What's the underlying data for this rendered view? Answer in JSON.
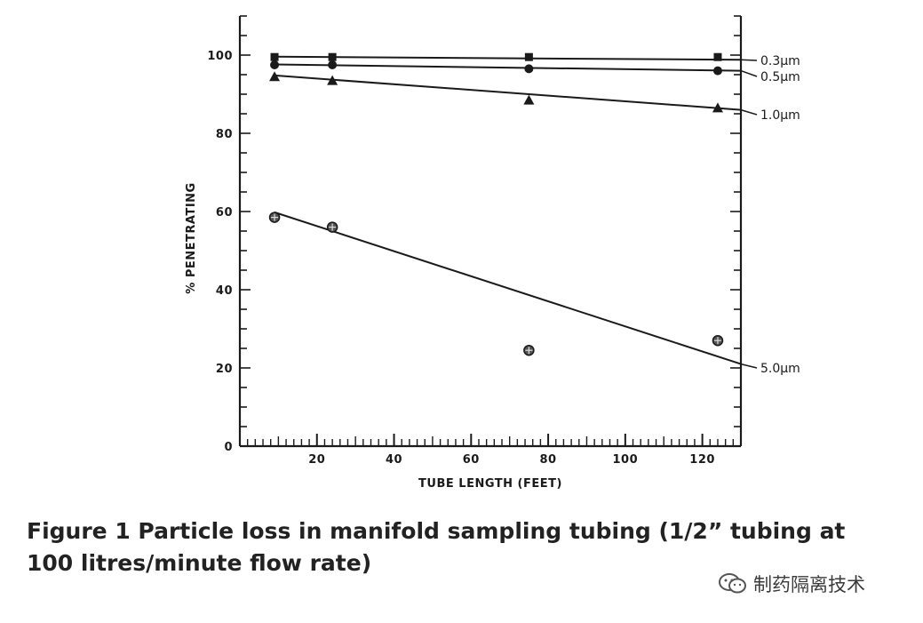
{
  "chart_data": {
    "type": "scatter",
    "xlabel": "TUBE LENGTH (FEET)",
    "ylabel": "% PENETRATING",
    "xlim": [
      0,
      130
    ],
    "ylim": [
      0,
      110
    ],
    "xticks": [
      20,
      40,
      60,
      80,
      100,
      120
    ],
    "yticks": [
      0,
      20,
      40,
      60,
      80,
      100
    ],
    "grid": false,
    "series": [
      {
        "name": "0.3μm",
        "marker": "square",
        "x": [
          9,
          24,
          75,
          124
        ],
        "y": [
          99.5,
          99.5,
          99.5,
          99.5
        ],
        "fit": [
          [
            9,
            99.6
          ],
          [
            130,
            98.8
          ]
        ]
      },
      {
        "name": "0.5μm",
        "marker": "circle",
        "x": [
          9,
          24,
          75,
          124
        ],
        "y": [
          97.5,
          97.5,
          96.5,
          96
        ],
        "fit": [
          [
            9,
            97.6
          ],
          [
            130,
            96.0
          ]
        ]
      },
      {
        "name": "1.0μm",
        "marker": "triangle",
        "x": [
          9,
          24,
          75,
          124
        ],
        "y": [
          94.5,
          93.5,
          88.5,
          86.5
        ],
        "fit": [
          [
            9,
            94.8
          ],
          [
            130,
            86.0
          ]
        ]
      },
      {
        "name": "5.0μm",
        "marker": "circle-cross",
        "x": [
          9,
          24,
          75,
          124
        ],
        "y": [
          58.5,
          56,
          24.5,
          27
        ],
        "fit": [
          [
            9,
            59.8
          ],
          [
            130,
            21.0
          ]
        ]
      }
    ]
  },
  "caption": "Figure 1 Particle loss in manifold sampling tubing (1/2” tubing at 100 litres/minute flow rate)",
  "watermark": {
    "icon": "wechat-icon",
    "text": "制药隔离技术"
  }
}
